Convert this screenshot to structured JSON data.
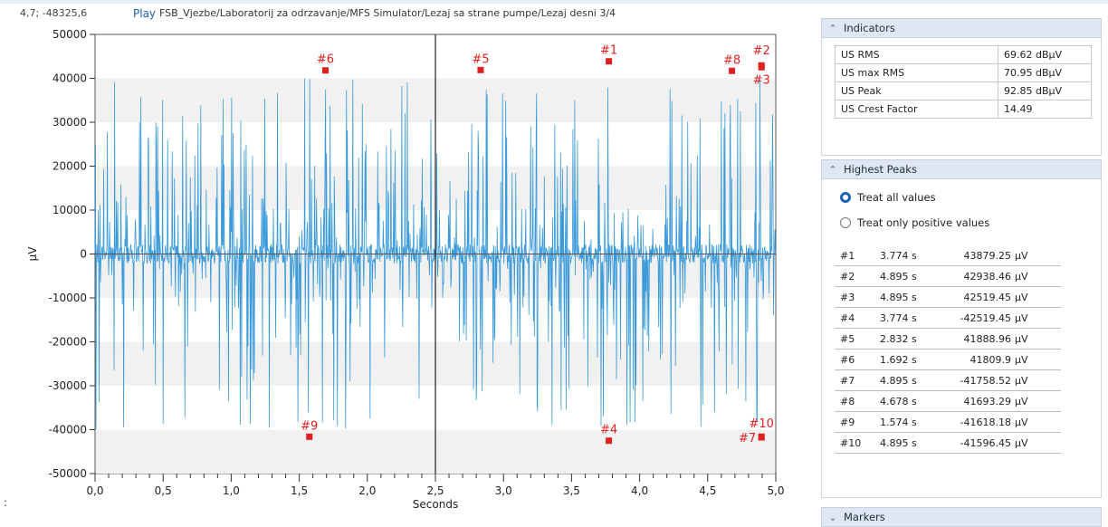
{
  "header": {
    "coordinates": "4,7; -48325,6",
    "play_label": "Play",
    "path": "FSB_Vjezbe/Laboratorij za odrzavanje/MFS Simulator/Lezaj sa strane pumpe/Lezaj desni 3/4",
    "left_mark": ":"
  },
  "indicators": {
    "title": "Indicators",
    "rows": [
      {
        "label": "US RMS",
        "value": "69.62 dBµV"
      },
      {
        "label": "US max RMS",
        "value": "70.95 dBµV"
      },
      {
        "label": "US Peak",
        "value": "92.85 dBµV"
      },
      {
        "label": "US Crest Factor",
        "value": "14.49"
      }
    ]
  },
  "highest_peaks": {
    "title": "Highest Peaks",
    "options": [
      {
        "label": "Treat all values",
        "selected": true
      },
      {
        "label": "Treat only positive values",
        "selected": false
      }
    ],
    "rows": [
      {
        "id": "#1",
        "time": "3.774 s",
        "value": "43879.25",
        "unit": "µV"
      },
      {
        "id": "#2",
        "time": "4.895 s",
        "value": "42938.46",
        "unit": "µV"
      },
      {
        "id": "#3",
        "time": "4.895 s",
        "value": "42519.45",
        "unit": "µV"
      },
      {
        "id": "#4",
        "time": "3.774 s",
        "value": "-42519.45",
        "unit": "µV"
      },
      {
        "id": "#5",
        "time": "2.832 s",
        "value": "41888.96",
        "unit": "µV"
      },
      {
        "id": "#6",
        "time": "1.692 s",
        "value": "41809.9",
        "unit": "µV"
      },
      {
        "id": "#7",
        "time": "4.895 s",
        "value": "-41758.52",
        "unit": "µV"
      },
      {
        "id": "#8",
        "time": "4.678 s",
        "value": "41693.29",
        "unit": "µV"
      },
      {
        "id": "#9",
        "time": "1.574 s",
        "value": "-41618.18",
        "unit": "µV"
      },
      {
        "id": "#10",
        "time": "4.895 s",
        "value": "-41596.45",
        "unit": "µV"
      }
    ]
  },
  "markers_panel": {
    "title": "Markers"
  },
  "chart_data": {
    "type": "line",
    "xlabel": "Seconds",
    "ylabel": "µV",
    "xlim": [
      0,
      5
    ],
    "ylim": [
      -50000,
      50000
    ],
    "x_ticks": [
      "0,0",
      "0,5",
      "1,0",
      "1,5",
      "2,0",
      "2,5",
      "3,0",
      "3,5",
      "4,0",
      "4,5",
      "5,0"
    ],
    "y_ticks": [
      {
        "value": 50000,
        "label": "50000"
      },
      {
        "value": 40000,
        "label": "40000"
      },
      {
        "value": 30000,
        "label": "30000"
      },
      {
        "value": 20000,
        "label": "20000"
      },
      {
        "value": 10000,
        "label": "10000"
      },
      {
        "value": 0,
        "label": "0"
      },
      {
        "value": -10000,
        "label": "-10000"
      },
      {
        "value": -20000,
        "label": "-20000"
      },
      {
        "value": -30000,
        "label": "-30000"
      },
      {
        "value": -40000,
        "label": "-40000"
      },
      {
        "value": -50000,
        "label": "-50000"
      }
    ],
    "cursor_x": 2.5,
    "series_color": "#3a9ad9",
    "marker_color": "#e02020",
    "peak_markers": [
      {
        "label": "#1",
        "x": 3.774,
        "y": 43879.25
      },
      {
        "label": "#2",
        "x": 4.895,
        "y": 42938.46
      },
      {
        "label": "#3",
        "x": 4.895,
        "y": 42519.45
      },
      {
        "label": "#4",
        "x": 3.774,
        "y": -42519.45
      },
      {
        "label": "#5",
        "x": 2.832,
        "y": 41888.96
      },
      {
        "label": "#6",
        "x": 1.692,
        "y": 41809.9
      },
      {
        "label": "#7",
        "x": 4.895,
        "y": -41758.52
      },
      {
        "label": "#8",
        "x": 4.678,
        "y": 41693.29
      },
      {
        "label": "#9",
        "x": 1.574,
        "y": -41618.18
      },
      {
        "label": "#10",
        "x": 4.895,
        "y": -41596.45
      }
    ]
  }
}
